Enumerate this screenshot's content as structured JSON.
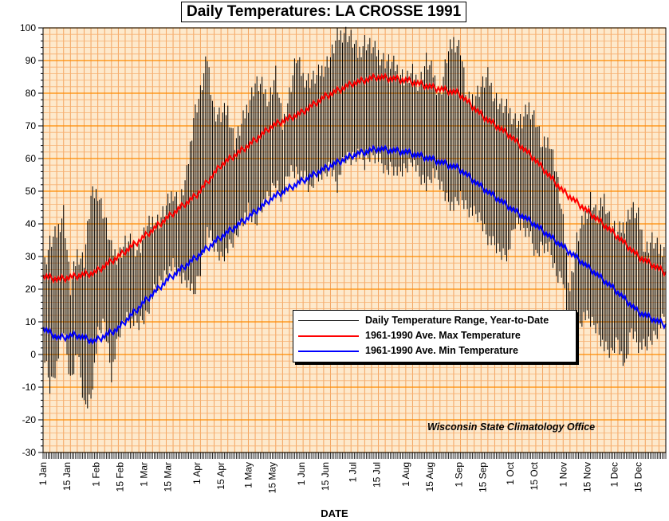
{
  "chart_data": {
    "type": "line",
    "title": "Daily Temperatures: LA CROSSE 1991",
    "xlabel": "DATE",
    "ylabel": "",
    "ylim": [
      -30,
      100
    ],
    "yticks": [
      100,
      90,
      80,
      70,
      60,
      50,
      40,
      30,
      20,
      10,
      0,
      -10,
      -20,
      -30
    ],
    "xlim": [
      1,
      365
    ],
    "x_tick_labels": [
      {
        "label": "1 Jan",
        "day": 1
      },
      {
        "label": "15 Jan",
        "day": 15
      },
      {
        "label": "1 Feb",
        "day": 32
      },
      {
        "label": "15 Feb",
        "day": 46
      },
      {
        "label": "1 Mar",
        "day": 60
      },
      {
        "label": "15 Mar",
        "day": 74
      },
      {
        "label": "1 Apr",
        "day": 91
      },
      {
        "label": "15 Apr",
        "day": 105
      },
      {
        "label": "1 May",
        "day": 121
      },
      {
        "label": "15 May",
        "day": 135
      },
      {
        "label": "1 Jun",
        "day": 152
      },
      {
        "label": "15 Jun",
        "day": 166
      },
      {
        "label": "1 Jul",
        "day": 182
      },
      {
        "label": "15 Jul",
        "day": 196
      },
      {
        "label": "1 Aug",
        "day": 213
      },
      {
        "label": "15 Aug",
        "day": 227
      },
      {
        "label": "1 Sep",
        "day": 244
      },
      {
        "label": "15 Sep",
        "day": 258
      },
      {
        "label": "1 Oct",
        "day": 274
      },
      {
        "label": "15 Oct",
        "day": 288
      },
      {
        "label": "1 Nov",
        "day": 305
      },
      {
        "label": "15 Nov",
        "day": 319
      },
      {
        "label": "1 Dec",
        "day": 335
      },
      {
        "label": "15 Dec",
        "day": 349
      }
    ],
    "grid": true,
    "legend_position": "center-right",
    "annotation": "Wisconsin State Climatology Office",
    "series": [
      {
        "name": "Daily Temperature Range, Year-to-Date",
        "type": "range",
        "color": "#000000",
        "days": [
          1,
          5,
          9,
          13,
          17,
          21,
          25,
          29,
          33,
          37,
          41,
          45,
          49,
          53,
          57,
          61,
          65,
          69,
          73,
          77,
          81,
          85,
          89,
          93,
          97,
          101,
          105,
          109,
          113,
          117,
          121,
          125,
          129,
          133,
          137,
          141,
          145,
          149,
          153,
          157,
          161,
          165,
          169,
          173,
          177,
          181,
          185,
          189,
          193,
          197,
          201,
          205,
          209,
          213,
          217,
          221,
          225,
          229,
          233,
          237,
          241,
          245,
          249,
          253,
          257,
          261,
          265,
          269,
          273,
          277,
          281,
          285,
          289,
          293,
          297,
          301,
          305,
          309,
          313,
          317,
          321,
          325,
          329,
          333,
          337,
          341,
          345,
          349,
          353,
          357,
          361,
          365
        ],
        "highs": [
          26,
          34,
          37,
          44,
          20,
          31,
          29,
          48,
          50,
          42,
          32,
          30,
          34,
          34,
          32,
          38,
          41,
          41,
          45,
          50,
          46,
          55,
          73,
          80,
          91,
          74,
          73,
          75,
          65,
          70,
          77,
          83,
          82,
          78,
          86,
          70,
          80,
          91,
          85,
          84,
          85,
          88,
          91,
          97,
          99,
          97,
          92,
          96,
          94,
          92,
          90,
          89,
          87,
          84,
          86,
          83,
          90,
          86,
          79,
          91,
          96,
          94,
          77,
          79,
          82,
          85,
          79,
          76,
          75,
          72,
          71,
          76,
          72,
          63,
          66,
          56,
          40,
          20,
          35,
          41,
          48,
          42,
          48,
          40,
          37,
          40,
          45,
          42,
          32,
          35,
          32,
          34
        ],
        "lows": [
          2,
          -10,
          -3,
          8,
          -8,
          1,
          -16,
          -13,
          6,
          10,
          -6,
          5,
          12,
          10,
          9,
          12,
          18,
          22,
          25,
          27,
          24,
          23,
          18,
          26,
          38,
          33,
          30,
          32,
          35,
          41,
          44,
          40,
          46,
          48,
          53,
          48,
          56,
          56,
          55,
          50,
          56,
          54,
          58,
          52,
          60,
          60,
          62,
          58,
          62,
          60,
          56,
          58,
          55,
          57,
          60,
          54,
          52,
          56,
          52,
          48,
          45,
          48,
          45,
          43,
          41,
          36,
          33,
          31,
          31,
          40,
          40,
          37,
          30,
          34,
          32,
          24,
          24,
          5,
          8,
          12,
          10,
          8,
          2,
          0,
          5,
          -5,
          8,
          3,
          2,
          5,
          8,
          12
        ]
      },
      {
        "name": "1961-1990 Ave. Max Temperature",
        "type": "line",
        "color": "#ff0000",
        "days": [
          1,
          10,
          20,
          31,
          45,
          60,
          74,
          91,
          105,
          121,
          135,
          152,
          166,
          182,
          196,
          213,
          227,
          244,
          258,
          274,
          288,
          305,
          319,
          335,
          349,
          365
        ],
        "values": [
          24,
          23,
          24,
          25,
          30,
          36,
          42,
          49,
          58,
          64,
          70,
          74,
          79,
          83,
          85,
          84,
          82,
          80,
          73,
          67,
          60,
          50,
          44,
          37,
          30,
          25
        ]
      },
      {
        "name": "1961-1990 Ave. Min Temperature",
        "type": "line",
        "color": "#0000ff",
        "days": [
          1,
          10,
          20,
          31,
          45,
          60,
          74,
          91,
          105,
          121,
          135,
          152,
          166,
          182,
          196,
          213,
          227,
          244,
          258,
          274,
          288,
          305,
          319,
          335,
          349,
          365
        ],
        "values": [
          8,
          5,
          6,
          4,
          8,
          16,
          23,
          30,
          36,
          42,
          48,
          53,
          57,
          61,
          63,
          62,
          60,
          57,
          51,
          45,
          40,
          33,
          27,
          20,
          13,
          9
        ]
      }
    ]
  }
}
